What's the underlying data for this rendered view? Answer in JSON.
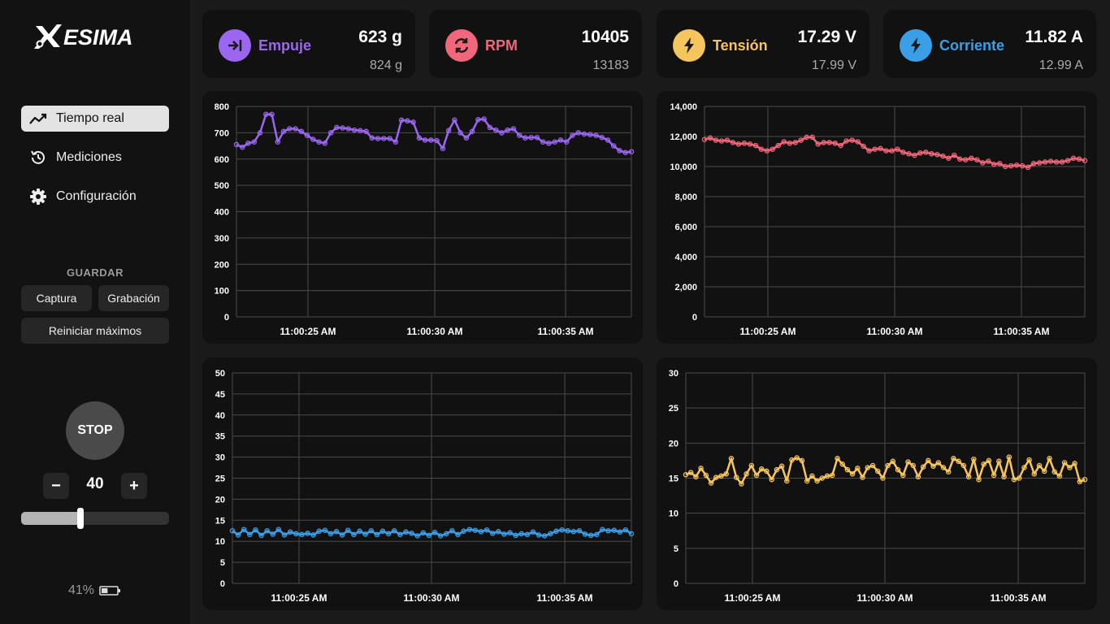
{
  "app": {
    "logo_text": "ESIMA"
  },
  "nav": {
    "items": [
      {
        "label": "Tiempo real",
        "icon": "trend-line-icon",
        "active": true
      },
      {
        "label": "Mediciones",
        "icon": "history-icon",
        "active": false
      },
      {
        "label": "Configuración",
        "icon": "gear-icon",
        "active": false
      }
    ]
  },
  "save": {
    "title": "GUARDAR",
    "capture_label": "Captura",
    "record_label": "Grabación",
    "reset_label": "Reiniciar máximos"
  },
  "control": {
    "stop_label": "STOP",
    "minus_label": "−",
    "plus_label": "+",
    "throttle": 40,
    "throttle_fraction": 0.4
  },
  "battery": {
    "level_text": "41%",
    "level_fraction": 0.41
  },
  "metrics": [
    {
      "key": "empuje",
      "label": "Empuje",
      "value": "623 g",
      "max": "824 g",
      "color": "#9b66f0",
      "icon": "arrow-to-line-icon"
    },
    {
      "key": "rpm",
      "label": "RPM",
      "value": "10405",
      "max": "13183",
      "color": "#f0667a",
      "icon": "refresh-icon"
    },
    {
      "key": "tension",
      "label": "Tensión",
      "value": "17.29 V",
      "max": "17.99 V",
      "color": "#f7c55e",
      "icon": "lightning-icon"
    },
    {
      "key": "corriente",
      "label": "Corriente",
      "value": "11.82 A",
      "max": "12.99 A",
      "color": "#3b9fe8",
      "icon": "lightning-icon"
    }
  ],
  "chart_data": [
    {
      "type": "line",
      "series_key": "empuje",
      "color": "#9b66f0",
      "x_ticks": [
        "11:00:25 AM",
        "11:00:30 AM",
        "11:00:35 AM"
      ],
      "y_ticks": [
        "0",
        "100",
        "200",
        "300",
        "400",
        "500",
        "600",
        "700",
        "800"
      ],
      "ylim": [
        0,
        800
      ],
      "grid": true,
      "values": [
        655,
        645,
        660,
        665,
        700,
        770,
        770,
        665,
        705,
        715,
        715,
        705,
        690,
        675,
        665,
        660,
        700,
        720,
        718,
        715,
        710,
        708,
        705,
        680,
        678,
        678,
        678,
        665,
        748,
        745,
        740,
        680,
        672,
        672,
        670,
        640,
        708,
        748,
        700,
        680,
        705,
        750,
        752,
        720,
        710,
        700,
        710,
        715,
        690,
        680,
        682,
        682,
        665,
        660,
        665,
        672,
        665,
        690,
        700,
        695,
        693,
        690,
        682,
        672,
        650,
        632,
        625,
        628
      ]
    },
    {
      "type": "line",
      "series_key": "rpm",
      "color": "#f0667a",
      "x_ticks": [
        "11:00:25 AM",
        "11:00:30 AM",
        "11:00:35 AM"
      ],
      "y_ticks": [
        "0",
        "2,000",
        "4,000",
        "6,000",
        "8,000",
        "10,000",
        "12,000",
        "14,000"
      ],
      "ylim": [
        0,
        14000
      ],
      "grid": true,
      "values": [
        11800,
        11900,
        11750,
        11700,
        11750,
        11600,
        11500,
        11550,
        11500,
        11400,
        11150,
        11050,
        11150,
        11400,
        11650,
        11550,
        11600,
        11750,
        11950,
        11950,
        11500,
        11600,
        11600,
        11550,
        11400,
        11700,
        11750,
        11650,
        11350,
        11050,
        11150,
        11200,
        11050,
        11050,
        11150,
        10950,
        10850,
        10750,
        10900,
        10950,
        10850,
        10800,
        10700,
        10550,
        10750,
        10500,
        10450,
        10550,
        10450,
        10250,
        10350,
        10150,
        10200,
        10000,
        10050,
        10100,
        10050,
        9950,
        10200,
        10250,
        10300,
        10350,
        10300,
        10300,
        10400,
        10550,
        10500,
        10400
      ]
    },
    {
      "type": "line",
      "series_key": "corriente",
      "color": "#3b9fe8",
      "x_ticks": [
        "11:00:25 AM",
        "11:00:30 AM",
        "11:00:35 AM"
      ],
      "y_ticks": [
        "0",
        "5",
        "10",
        "15",
        "20",
        "25",
        "30",
        "35",
        "40",
        "45",
        "50"
      ],
      "ylim": [
        0,
        50
      ],
      "grid": true,
      "values": [
        12.5,
        11.5,
        12.8,
        11.6,
        12.7,
        11.4,
        12.5,
        11.7,
        12.8,
        11.5,
        12.2,
        11.8,
        11.6,
        11.9,
        11.5,
        12.4,
        12.6,
        11.8,
        12.3,
        11.5,
        12.6,
        11.6,
        12.4,
        11.7,
        12.5,
        11.6,
        12.4,
        11.8,
        12.5,
        11.6,
        12.2,
        11.9,
        11.3,
        12.0,
        11.4,
        12.1,
        11.3,
        11.8,
        12.5,
        11.6,
        12.4,
        12.8,
        12.6,
        12.3,
        12.7,
        11.9,
        12.3,
        11.7,
        12.0,
        11.4,
        11.8,
        11.6,
        12.2,
        11.5,
        11.3,
        11.8,
        12.4,
        12.7,
        12.5,
        12.3,
        12.5,
        11.7,
        11.4,
        11.6,
        12.8,
        12.5,
        12.6,
        12.2,
        12.7,
        11.8
      ]
    },
    {
      "type": "line",
      "series_key": "tension",
      "color": "#f7c55e",
      "x_ticks": [
        "11:00:25 AM",
        "11:00:30 AM",
        "11:00:35 AM"
      ],
      "y_ticks": [
        "0",
        "5",
        "10",
        "15",
        "20",
        "25",
        "30"
      ],
      "ylim": [
        0,
        30
      ],
      "grid": true,
      "values": [
        15.5,
        15.8,
        15.2,
        16.4,
        15.4,
        14.3,
        15.1,
        15.3,
        15.6,
        17.8,
        15.1,
        14.2,
        15.6,
        16.8,
        15.4,
        16.3,
        16.0,
        14.8,
        16.2,
        16.7,
        14.6,
        17.6,
        17.9,
        17.5,
        14.6,
        15.3,
        14.6,
        15.0,
        15.3,
        15.4,
        17.8,
        17.0,
        16.2,
        15.6,
        16.4,
        15.1,
        16.5,
        16.8,
        16.0,
        15.0,
        16.8,
        17.4,
        16.2,
        15.4,
        17.3,
        16.8,
        15.2,
        16.6,
        17.5,
        16.7,
        17.2,
        16.5,
        15.9,
        17.8,
        17.4,
        16.8,
        15.2,
        17.7,
        14.8,
        17.0,
        17.5,
        15.4,
        17.4,
        15.2,
        18.0,
        14.8,
        15.0,
        16.5,
        17.6,
        15.6,
        16.8,
        16.0,
        17.8,
        15.9,
        15.3,
        17.2,
        16.5,
        17.1,
        14.5,
        14.8
      ]
    }
  ]
}
